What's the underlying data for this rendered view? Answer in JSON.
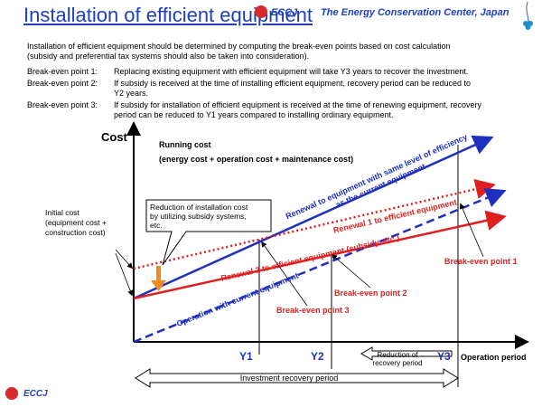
{
  "header": {
    "title": "Installation of efficient equipment",
    "org_short": "ECCJ",
    "org_name": "The Energy Conservation Center, Japan"
  },
  "intro": {
    "line1": "Installation of efficient equipment should be determined by computing the break-even points based on cost calculation",
    "line2": "(subsidy and preferential tax systems should also be taken into consideration)."
  },
  "break_even_points": [
    {
      "label": "Break-even point 1:",
      "text1": "Replacing existing equipment with efficient equipment will take Y3 years to recover the investment.",
      "text2": ""
    },
    {
      "label": "Break-even point 2:",
      "text1": "If subsidy is received at the time of installing efficient equipment, recovery period can be reduced to",
      "text2": "Y2 years."
    },
    {
      "label": "Break-even point 3:",
      "text1": "If subsidy for installation of efficient equipment is received at the time of renewing equipment, recovery",
      "text2": "period can be reduced to Y1 years compared to installing ordinary equipment."
    }
  ],
  "diagram": {
    "y_axis_label": "Cost",
    "x_axis_label": "Operation period",
    "running_cost_line1": "Running cost",
    "running_cost_line2": "(energy cost + operation cost + maintenance cost)",
    "initial_cost_line1": "Initial cost",
    "initial_cost_line2": "(equipment cost +",
    "initial_cost_line3": "construction cost)",
    "callout_line1": "Reduction of installation cost",
    "callout_line2": "by utilizing subsidy systems,",
    "callout_line3": "etc.",
    "renewal_same_line1": "Renewal to equipment with same level of efficiency",
    "renewal_same_line2": "as the current equipment",
    "renewal1": "Renewal 1 to efficient equipment",
    "renewal2": "Renewal 2 to efficient equipment (subsidy, etc.)",
    "operation_current": "Operation with current equipment",
    "bep1": "Break-even point  1",
    "bep2": "Break-even point 2",
    "bep3": "Break-even point 3",
    "y1": "Y1",
    "y2": "Y2",
    "y3": "Y3",
    "reduction_line1": "Reduction of",
    "reduction_line2": "recovery period",
    "investment_recovery": "Investment recovery period"
  },
  "footer": {
    "org_short": "ECCJ"
  },
  "colors": {
    "blue": "#1f2fbf",
    "red": "#e02020",
    "title": "#1f3fbf"
  }
}
